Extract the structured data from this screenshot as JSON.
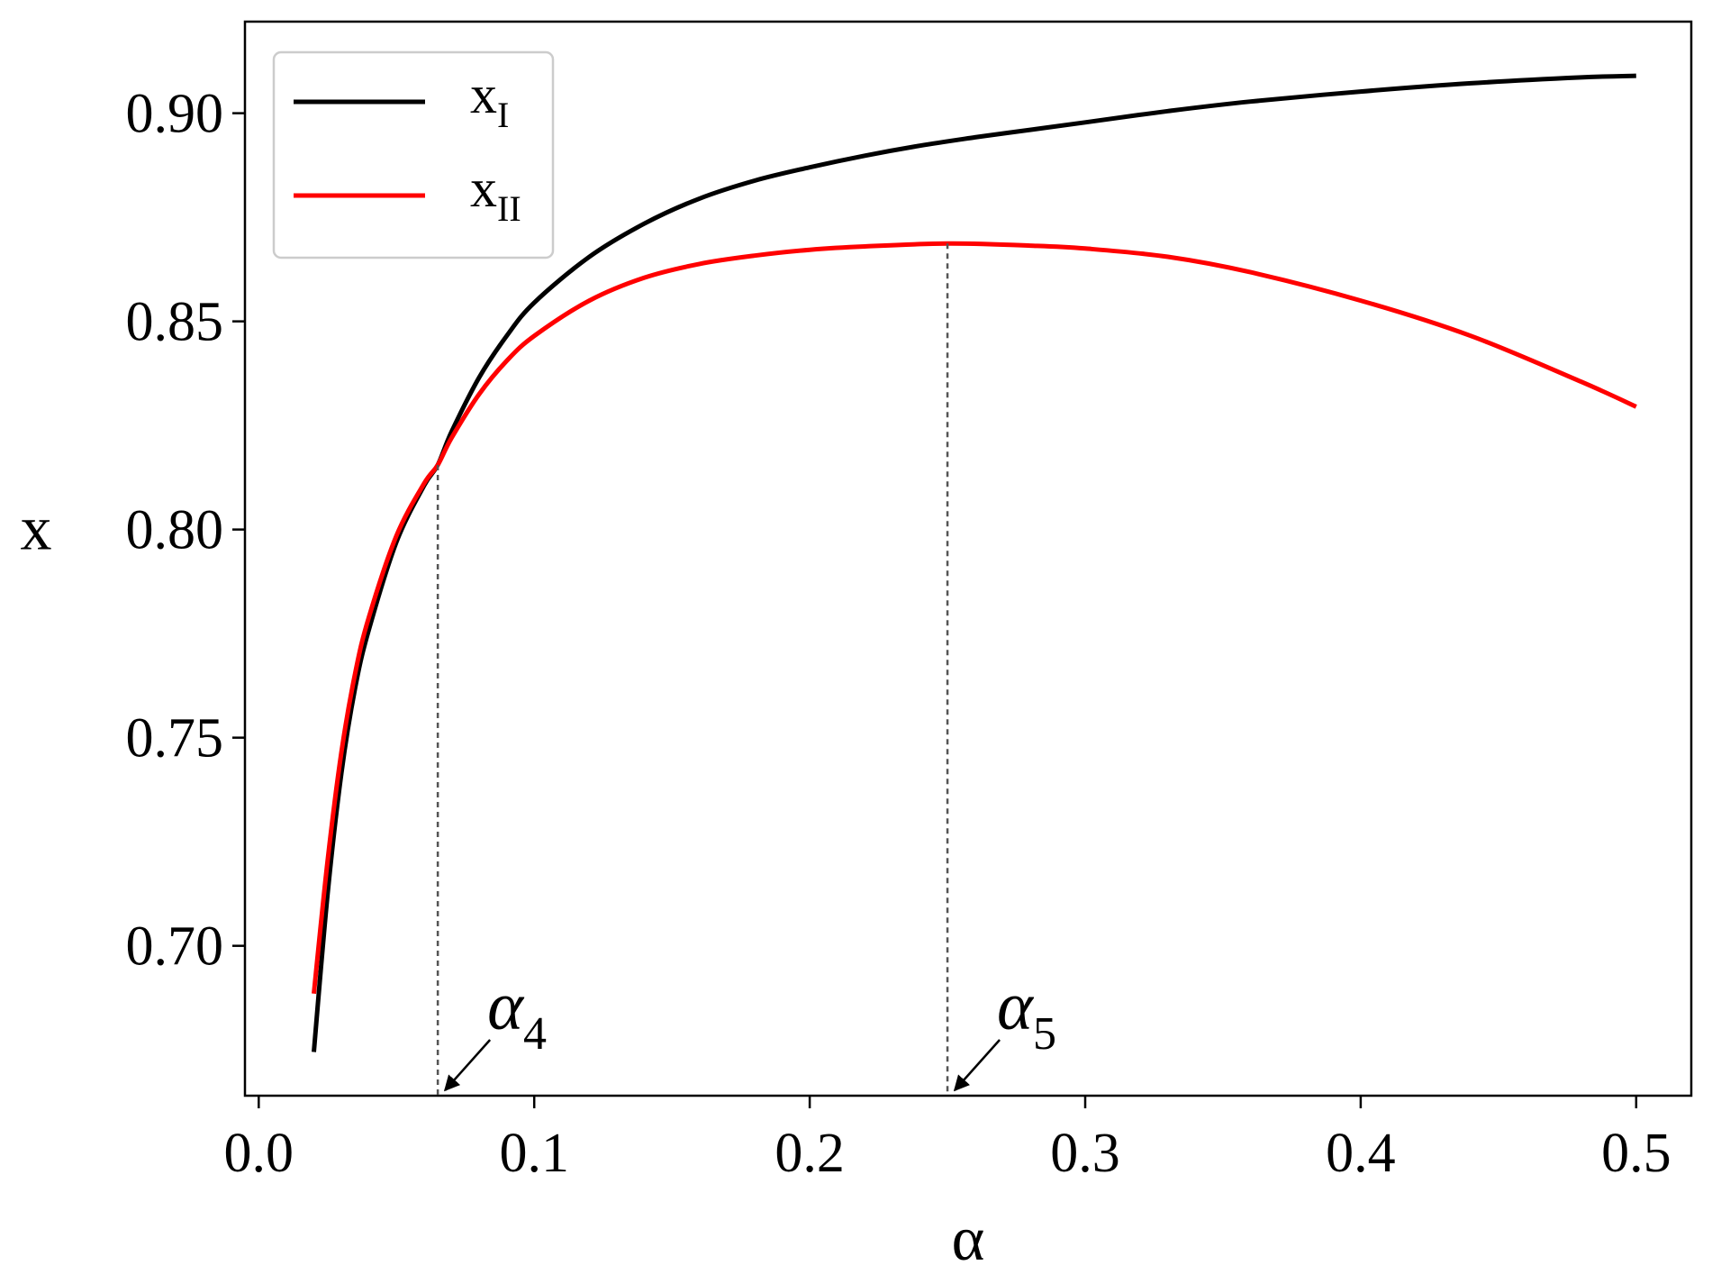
{
  "chart_data": {
    "type": "line",
    "title": "",
    "xlabel": "α",
    "ylabel": "x",
    "xlim": [
      -0.005,
      0.52
    ],
    "ylim": [
      0.664,
      0.922
    ],
    "x_ticks": [
      0.0,
      0.1,
      0.2,
      0.3,
      0.4,
      0.5
    ],
    "x_tick_labels": [
      "0.0",
      "0.1",
      "0.2",
      "0.3",
      "0.4",
      "0.5"
    ],
    "y_ticks": [
      0.7,
      0.75,
      0.8,
      0.85,
      0.9
    ],
    "y_tick_labels": [
      "0.70",
      "0.75",
      "0.80",
      "0.85",
      "0.90"
    ],
    "grid": false,
    "legend_position": "top-left",
    "series": [
      {
        "name": "x",
        "subscript": "I",
        "color": "#000000",
        "x": [
          0.02,
          0.025,
          0.03,
          0.035,
          0.04,
          0.05,
          0.06,
          0.065,
          0.07,
          0.08,
          0.09,
          0.1,
          0.12,
          0.14,
          0.16,
          0.18,
          0.2,
          0.22,
          0.24,
          0.26,
          0.28,
          0.3,
          0.33,
          0.36,
          0.4,
          0.44,
          0.48,
          0.5
        ],
        "y": [
          0.6745,
          0.7125,
          0.7415,
          0.762,
          0.776,
          0.797,
          0.8105,
          0.8155,
          0.8235,
          0.8365,
          0.8465,
          0.8545,
          0.8655,
          0.8735,
          0.8795,
          0.8838,
          0.887,
          0.8898,
          0.8922,
          0.8942,
          0.896,
          0.8978,
          0.9005,
          0.9028,
          0.9052,
          0.9072,
          0.9086,
          0.909
        ]
      },
      {
        "name": "x",
        "subscript": "II",
        "color": "#ff0000",
        "x": [
          0.02,
          0.025,
          0.03,
          0.035,
          0.04,
          0.05,
          0.06,
          0.065,
          0.07,
          0.08,
          0.09,
          0.1,
          0.12,
          0.14,
          0.16,
          0.18,
          0.2,
          0.22,
          0.25,
          0.28,
          0.3,
          0.33,
          0.36,
          0.4,
          0.44,
          0.48,
          0.5
        ],
        "y": [
          0.6885,
          0.7205,
          0.7465,
          0.7655,
          0.779,
          0.7985,
          0.811,
          0.8155,
          0.822,
          0.8325,
          0.8405,
          0.8465,
          0.855,
          0.8605,
          0.8638,
          0.8658,
          0.8672,
          0.868,
          0.8687,
          0.8682,
          0.8675,
          0.8655,
          0.8618,
          0.855,
          0.8465,
          0.8355,
          0.8295
        ]
      }
    ],
    "reference_lines": [
      {
        "x": 0.065,
        "y": 0.8155,
        "label": "α",
        "subscript": "4"
      },
      {
        "x": 0.25,
        "y": 0.8687,
        "label": "α",
        "subscript": "5"
      }
    ]
  }
}
